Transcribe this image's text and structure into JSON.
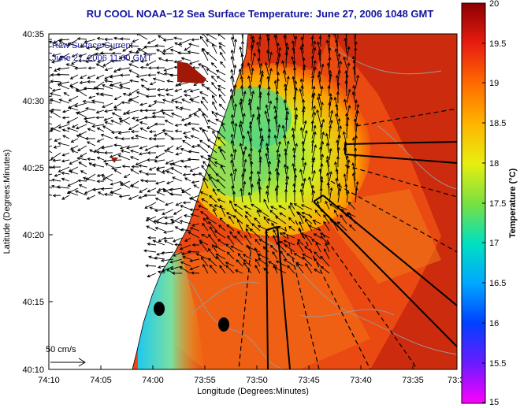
{
  "figure": {
    "title": "RU COOL   NOAA−12  Sea Surface Temperature:  June 27, 2006 1048 GMT",
    "annotation_line1": "Raw Surface Current",
    "annotation_line2": "June 27, 2006 11:00 GMT",
    "scale_label": "50 cm/s"
  },
  "axes": {
    "xlabel": "Longitude (Degrees:Minutes)",
    "ylabel": "Latitude (Degrees:Minutes)",
    "xticks": [
      "74:10",
      "74:05",
      "74:00",
      "73:55",
      "73:50",
      "73:45",
      "73:40",
      "73:35",
      "73:3"
    ],
    "yticks": [
      "40:35",
      "40:30",
      "40:25",
      "40:20",
      "40:15",
      "40:10"
    ]
  },
  "colorbar": {
    "label": "Temperature (°C)",
    "ticks": [
      "20",
      "19.5",
      "19",
      "18.5",
      "18",
      "17.5",
      "17",
      "16.5",
      "16",
      "15.5",
      "15"
    ],
    "range": [
      15,
      20
    ]
  },
  "colors": {
    "title": "#1414a0",
    "warm": "#c81e10",
    "land": "#ffffff",
    "cold": "#2fd0e8"
  }
}
